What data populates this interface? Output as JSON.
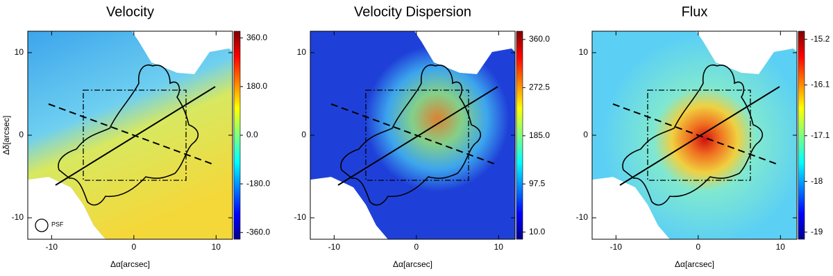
{
  "chart_data": [
    {
      "type": "image",
      "title": "Velocity",
      "xlabel": "Δα[arcsec]",
      "ylabel": "Δδ[arcsec]",
      "annotation": "PSF",
      "xlim": [
        -12.9,
        12.0
      ],
      "ylim": [
        -12.6,
        12.6
      ],
      "xticks": [
        -10,
        0,
        10
      ],
      "yticks": [
        -10,
        0,
        10
      ],
      "colorbar": {
        "lim": [
          -385,
          385
        ],
        "ticks": [
          {
            "value": -360,
            "label": "-360.0"
          },
          {
            "value": -180,
            "label": "-180.0"
          },
          {
            "value": 0,
            "label": "0.0"
          },
          {
            "value": 180,
            "label": "180.0"
          },
          {
            "value": 360,
            "label": "360.0"
          }
        ]
      }
    },
    {
      "type": "image",
      "title": "Velocity Dispersion",
      "xlabel": "Δα[arcsec]",
      "xlim": [
        -12.9,
        12.0
      ],
      "ylim": [
        -12.6,
        12.6
      ],
      "xticks": [
        -10,
        0,
        10
      ],
      "yticks": [
        -10,
        0,
        10
      ],
      "colorbar": {
        "lim": [
          -3,
          375
        ],
        "ticks": [
          {
            "value": 10,
            "label": "10.0"
          },
          {
            "value": 97.5,
            "label": "97.5"
          },
          {
            "value": 185,
            "label": "185.0"
          },
          {
            "value": 272.5,
            "label": "272.5"
          },
          {
            "value": 360,
            "label": "360.0"
          }
        ]
      }
    },
    {
      "type": "image",
      "title": "Flux",
      "xlabel": "Δα[arcsec]",
      "xlim": [
        -12.9,
        12.0
      ],
      "ylim": [
        -12.6,
        12.6
      ],
      "xticks": [
        -10,
        0,
        10
      ],
      "yticks": [
        -10,
        0,
        10
      ],
      "colorbar": {
        "lim": [
          -19.14,
          -15.04
        ],
        "ticks": [
          -19.0,
          -18.0,
          -17.1,
          -16.1,
          -15.2
        ]
      }
    }
  ]
}
